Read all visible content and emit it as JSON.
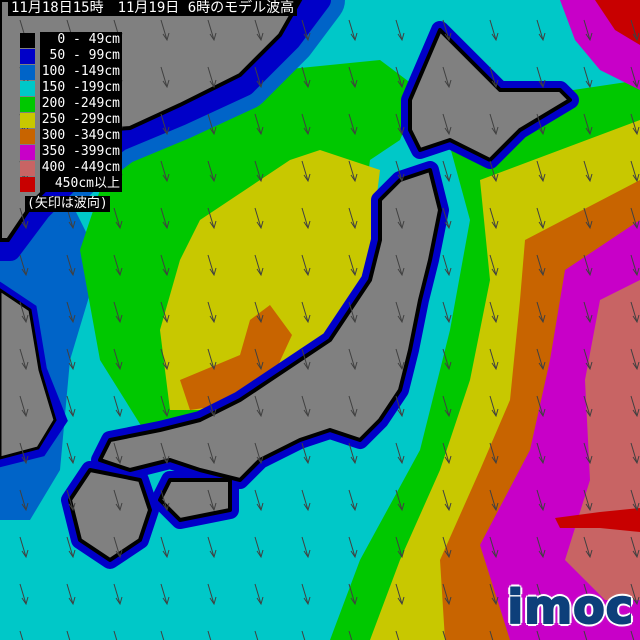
{
  "title": "11月18日15時　11月19日 6時のモデル波高",
  "legend": {
    "items": [
      {
        "label": " 0 - 49cm",
        "color": "#000000"
      },
      {
        "label": " 50 - 99cm",
        "color": "#0000c8"
      },
      {
        "label": "100 -149cm",
        "color": "#0064c8"
      },
      {
        "label": "150 -199cm",
        "color": "#00c8c8"
      },
      {
        "label": "200 -249cm",
        "color": "#00c800"
      },
      {
        "label": "250 -299cm",
        "color": "#c8c800"
      },
      {
        "label": "300 -349cm",
        "color": "#c86400"
      },
      {
        "label": "350 -399cm",
        "color": "#c800c8"
      },
      {
        "label": "400 -449cm",
        "color": "#c86464"
      },
      {
        "label": " 450cm以上",
        "color": "#c80000"
      }
    ],
    "note": "(矢印は波向)"
  },
  "arrows": {
    "icon": "wave-direction-arrow",
    "color": "#404040"
  },
  "logo": "imoc"
}
